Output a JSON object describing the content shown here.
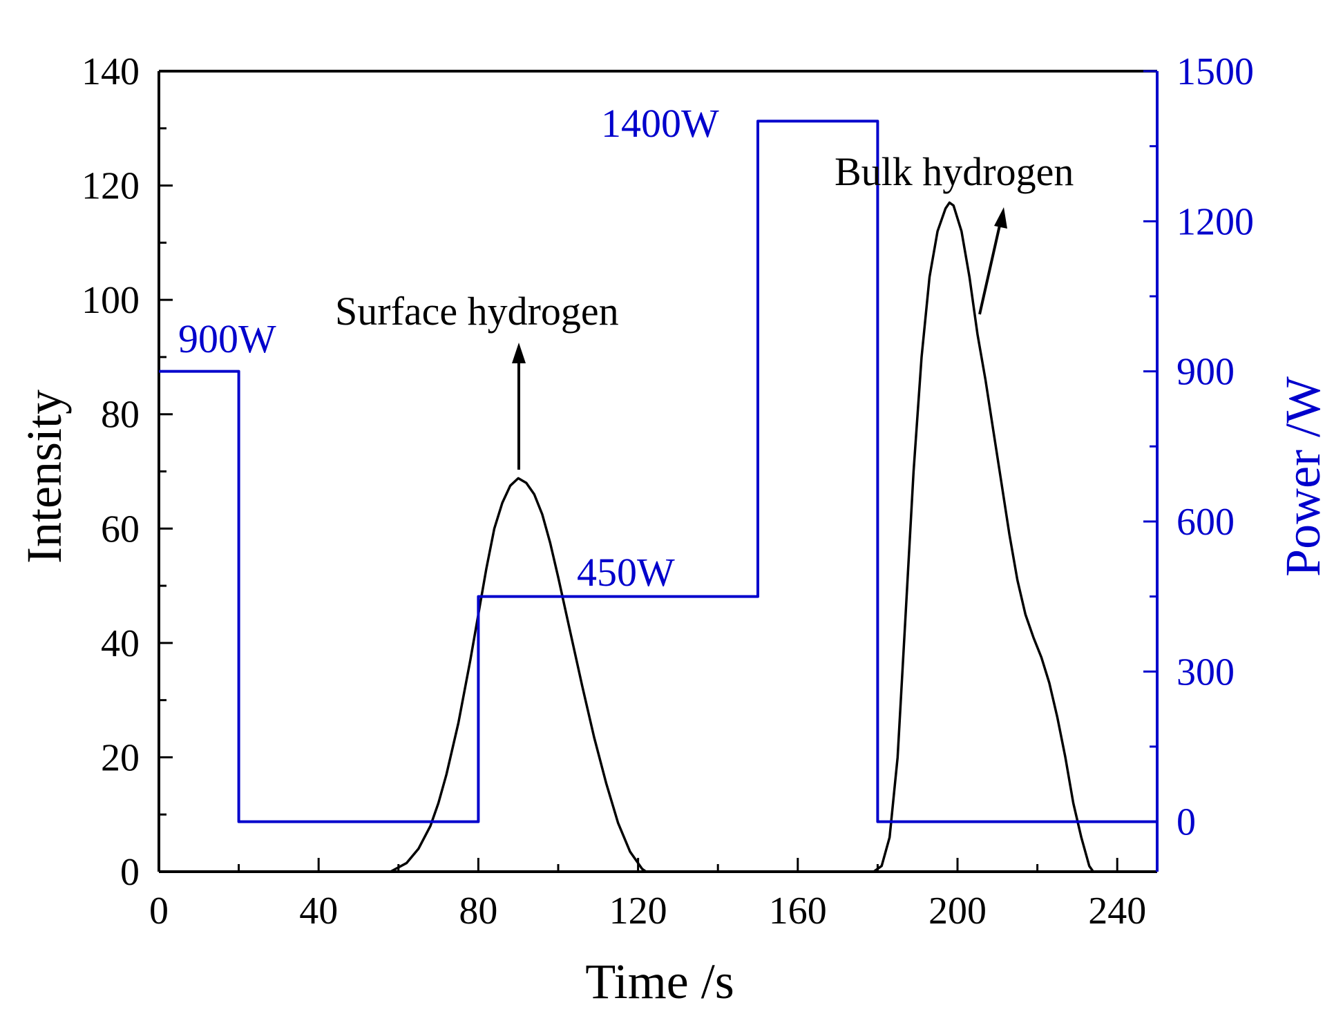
{
  "chart_data": {
    "type": "line",
    "title": "",
    "xlabel": "Time /s",
    "ylabel": "Intensity",
    "y2label": "Power /W",
    "xlim": [
      0,
      250
    ],
    "ylim": [
      0,
      140
    ],
    "y2lim": [
      -100,
      1500
    ],
    "x_ticks": [
      0,
      40,
      80,
      120,
      160,
      200,
      240
    ],
    "x_minor_ticks": [
      20,
      60,
      100,
      140,
      180,
      220
    ],
    "y_ticks": [
      0,
      20,
      40,
      60,
      80,
      100,
      120,
      140
    ],
    "y_minor_ticks": [
      10,
      30,
      50,
      70,
      90,
      110,
      130
    ],
    "y2_ticks": [
      0,
      300,
      600,
      900,
      1200,
      1500
    ],
    "y2_minor_ticks": [
      150,
      450,
      750,
      1050,
      1350
    ],
    "grid": false,
    "colors": {
      "intensity": "#000000",
      "power": "#0000cc",
      "axes": "#000000"
    },
    "series": [
      {
        "name": "Intensity",
        "axis": "left",
        "x": [
          58,
          62,
          65,
          68,
          70,
          72,
          75,
          78,
          80,
          82,
          84,
          86,
          88,
          90,
          92,
          94,
          96,
          98,
          100,
          103,
          106,
          109,
          112,
          115,
          118,
          121,
          122,
          179,
          181,
          183,
          185,
          187,
          189,
          191,
          193,
          195,
          197,
          198,
          199,
          201,
          203,
          205,
          207,
          209,
          211,
          213,
          215,
          217,
          219,
          221,
          223,
          225,
          227,
          229,
          231,
          233,
          234
        ],
        "values": [
          0,
          1.5,
          4,
          8,
          12,
          17,
          26,
          37,
          45,
          53,
          60,
          64.5,
          67.5,
          68.8,
          68,
          66,
          62.5,
          57.5,
          51.5,
          42,
          32.5,
          23.5,
          15.5,
          8.5,
          3.5,
          0.5,
          0,
          0,
          1,
          6,
          20,
          45,
          70,
          90,
          104,
          112,
          116,
          117,
          116.5,
          112,
          104,
          94,
          86,
          77,
          68,
          59,
          51,
          45,
          41,
          37.5,
          33,
          27,
          20,
          12,
          6,
          1,
          0
        ]
      },
      {
        "name": "Power",
        "axis": "right",
        "x": [
          0,
          20,
          20,
          80,
          80,
          150,
          150,
          180,
          180,
          250
        ],
        "values": [
          900,
          900,
          0,
          0,
          450,
          450,
          1400,
          1400,
          0,
          0
        ]
      }
    ],
    "annotations": [
      {
        "text": "900W",
        "color": "#0000cc"
      },
      {
        "text": "450W",
        "color": "#0000cc"
      },
      {
        "text": "1400W",
        "color": "#0000cc"
      },
      {
        "text": "Surface hydrogen",
        "color": "#000000"
      },
      {
        "text": "Bulk hydrogen",
        "color": "#000000"
      }
    ]
  }
}
